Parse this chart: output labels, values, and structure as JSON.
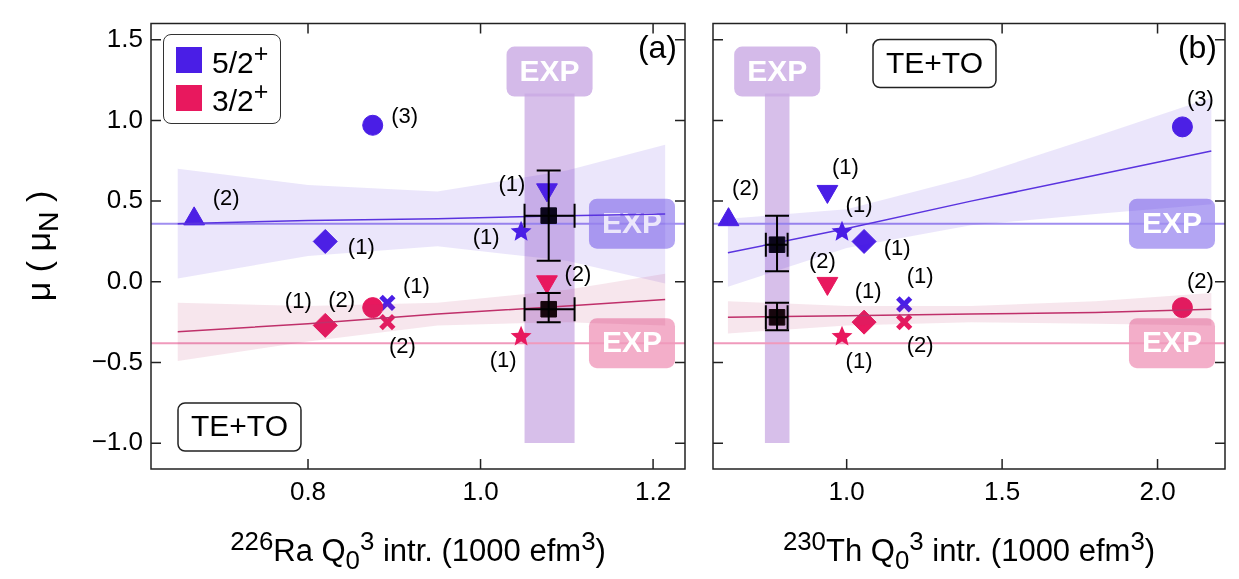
{
  "chart_data": [
    {
      "type": "scatter",
      "xlabel": "$^{226}$Ra Q$_{0}$$^{3}$ intr. (1000 efm$^{3}$)",
      "ylabel": "μ ( μ$_{N}$ )",
      "xlim": [
        0.618,
        1.237
      ],
      "xticks": [
        {
          "value": 0.8,
          "label": "0.8"
        },
        {
          "value": 1,
          "label": "1.0"
        },
        {
          "value": 1.2,
          "label": "1.2"
        }
      ],
      "ylim": [
        -1.16,
        1.6
      ],
      "yticks": [
        {
          "value": -1,
          "label": "−1.0"
        },
        {
          "value": -0.5,
          "label": "−0.5"
        },
        {
          "value": 0,
          "label": "0.0"
        },
        {
          "value": 0.5,
          "label": "0.5"
        },
        {
          "value": 1,
          "label": "1.0"
        },
        {
          "value": 1.5,
          "label": "1.5"
        }
      ],
      "grid": false,
      "legend": "top left",
      "bands": [
        {
          "axis": "x",
          "from": 1.051,
          "to": 1.109,
          "label": "EXP",
          "color": "#c9a9e3"
        }
      ],
      "ref_lines": [
        {
          "axis": "y",
          "value": 0.36,
          "label": "EXP",
          "color": "#a08ef0"
        },
        {
          "axis": "y",
          "value": -0.38,
          "label": "EXP",
          "color": "#f09abc"
        }
      ],
      "series": [
        {
          "name": "5/2$^{+}$",
          "type": "scatter",
          "marker": "circle",
          "color": "#4a1ee6",
          "x": [
            0.875
          ],
          "values": [
            0.97
          ]
        },
        {
          "type": "scatter",
          "marker": "triangle",
          "color": "#4a1ee6",
          "x": [
            0.668
          ],
          "values": [
            0.39
          ]
        },
        {
          "type": "scatter",
          "marker": "diamond",
          "color": "#4a1ee6",
          "x": [
            0.82
          ],
          "values": [
            0.25
          ]
        },
        {
          "type": "scatter",
          "marker": "cross",
          "color": "#4a1ee6",
          "x": [
            0.892
          ],
          "values": [
            -0.13
          ]
        },
        {
          "type": "scatter",
          "marker": "triangle_down",
          "color": "#4a1ee6",
          "x": [
            1.077
          ],
          "values": [
            0.57
          ]
        },
        {
          "type": "scatter",
          "marker": "star",
          "color": "#4a1ee6",
          "x": [
            1.047
          ],
          "values": [
            0.31
          ]
        },
        {
          "name": "3/2$^{+}$",
          "type": "scatter",
          "marker": "circle",
          "color": "#e8185e",
          "x": [
            0.875
          ],
          "values": [
            -0.16
          ]
        },
        {
          "type": "scatter",
          "marker": "diamond",
          "color": "#e8185e",
          "x": [
            0.82
          ],
          "values": [
            -0.27
          ]
        },
        {
          "type": "scatter",
          "marker": "cross",
          "color": "#e8185e",
          "x": [
            0.892
          ],
          "values": [
            -0.25
          ]
        },
        {
          "type": "scatter",
          "marker": "triangle_down",
          "color": "#e8185e",
          "x": [
            1.077
          ],
          "values": [
            0.0
          ]
        },
        {
          "type": "scatter",
          "marker": "star",
          "color": "#e8185e",
          "x": [
            1.047
          ],
          "values": [
            -0.34
          ]
        },
        {
          "type": "line",
          "marker": "none",
          "color": "#5a34e0",
          "x": [
            0.649,
            0.8,
            0.95,
            1.1,
            1.214
          ],
          "values": [
            0.36,
            0.38,
            0.39,
            0.41,
            0.42
          ],
          "lower": [
            0.02,
            0.16,
            0.22,
            0.13,
            -0.01
          ],
          "upper": [
            0.7,
            0.6,
            0.56,
            0.69,
            0.85
          ]
        },
        {
          "type": "line",
          "marker": "none",
          "color": "#c0306a",
          "x": [
            0.649,
            0.8,
            0.95,
            1.1,
            1.214
          ],
          "values": [
            -0.31,
            -0.26,
            -0.2,
            -0.15,
            -0.11
          ],
          "lower": [
            -0.49,
            -0.37,
            -0.27,
            -0.25,
            -0.27
          ],
          "upper": [
            -0.13,
            -0.15,
            -0.13,
            -0.05,
            0.05
          ]
        },
        {
          "type": "scatter",
          "marker": "square",
          "color": "#000000",
          "x": [
            1.079,
            1.079
          ],
          "values": [
            0.41,
            -0.17
          ],
          "errors": [
            [
              0.13,
              0.69
            ],
            [
              -0.25,
              -0.07
            ]
          ],
          "xerrors": [
            [
              1.051,
              1.109
            ],
            [
              1.051,
              1.109
            ]
          ]
        }
      ],
      "annotations": [
        "(a)",
        "TE+TO",
        "(3)",
        "(2)",
        "(1)",
        "(1)",
        "(1)",
        "(1)",
        "(2)",
        "(1)",
        "(2)",
        "(2)",
        "(1)"
      ]
    },
    {
      "type": "scatter",
      "xlabel": "$^{230}$Th Q$_{0}$$^{3}$ intr. (1000 efm$^{3}$)",
      "xlim": [
        0.57,
        2.217
      ],
      "xticks": [
        {
          "value": 1,
          "label": "1.0"
        },
        1.5,
        {
          "value": 2,
          "label": "2.0"
        }
      ],
      "ylim": [
        -1.16,
        1.6
      ],
      "yticks": [
        -1,
        -0.5,
        0,
        0.5,
        1,
        1.5
      ],
      "tick_labels": "x",
      "grid": false,
      "bands": [
        {
          "axis": "x",
          "from": 0.737,
          "to": 0.816,
          "label": "EXP",
          "color": "#c9a9e3"
        }
      ],
      "ref_lines": [
        {
          "axis": "y",
          "value": 0.36,
          "label": "EXP",
          "color": "#a08ef0"
        },
        {
          "axis": "y",
          "value": -0.38,
          "label": "EXP",
          "color": "#f09abc"
        }
      ],
      "series": [
        {
          "type": "scatter",
          "marker": "triangle",
          "color": "#4a1ee6",
          "x": [
            0.62
          ],
          "values": [
            0.385
          ]
        },
        {
          "type": "scatter",
          "marker": "triangle_down",
          "color": "#4a1ee6",
          "x": [
            0.938
          ],
          "values": [
            0.56
          ]
        },
        {
          "type": "scatter",
          "marker": "star",
          "color": "#4a1ee6",
          "x": [
            0.985
          ],
          "values": [
            0.31
          ]
        },
        {
          "type": "scatter",
          "marker": "diamond",
          "color": "#4a1ee6",
          "x": [
            1.056
          ],
          "values": [
            0.25
          ]
        },
        {
          "type": "scatter",
          "marker": "cross",
          "color": "#4a1ee6",
          "x": [
            1.185
          ],
          "values": [
            -0.14
          ]
        },
        {
          "type": "scatter",
          "marker": "circle",
          "color": "#4a1ee6",
          "x": [
            2.08
          ],
          "values": [
            0.96
          ]
        },
        {
          "type": "scatter",
          "marker": "triangle_down",
          "color": "#e8185e",
          "x": [
            0.938
          ],
          "values": [
            -0.01
          ]
        },
        {
          "type": "scatter",
          "marker": "diamond",
          "color": "#e8185e",
          "x": [
            1.056
          ],
          "values": [
            -0.25
          ]
        },
        {
          "type": "scatter",
          "marker": "star",
          "color": "#e8185e",
          "x": [
            0.985
          ],
          "values": [
            -0.34
          ]
        },
        {
          "type": "scatter",
          "marker": "cross",
          "color": "#e8185e",
          "x": [
            1.185
          ],
          "values": [
            -0.25
          ]
        },
        {
          "type": "scatter",
          "marker": "circle",
          "color": "#e8185e",
          "x": [
            2.08
          ],
          "values": [
            -0.16
          ]
        },
        {
          "type": "line",
          "marker": "none",
          "color": "#5a34e0",
          "x": [
            0.618,
            1.0,
            1.4,
            1.8,
            2.173
          ],
          "values": [
            0.18,
            0.33,
            0.5,
            0.66,
            0.81
          ],
          "lower": [
            -0.03,
            0.21,
            0.35,
            0.42,
            0.48
          ],
          "upper": [
            0.39,
            0.45,
            0.65,
            0.9,
            1.14
          ]
        },
        {
          "type": "line",
          "marker": "none",
          "color": "#c0306a",
          "x": [
            0.618,
            1.0,
            1.4,
            1.8,
            2.173
          ],
          "values": [
            -0.22,
            -0.21,
            -0.2,
            -0.19,
            -0.17
          ],
          "lower": [
            -0.32,
            -0.27,
            -0.25,
            -0.26,
            -0.27
          ],
          "upper": [
            -0.12,
            -0.15,
            -0.15,
            -0.12,
            -0.07
          ]
        },
        {
          "type": "scatter",
          "marker": "square",
          "color": "#000000",
          "x": [
            0.776,
            0.776
          ],
          "values": [
            0.23,
            -0.22
          ],
          "errors": [
            [
              0.065,
              0.41
            ],
            [
              -0.3,
              -0.13
            ]
          ],
          "xerrors": [
            [
              0.74,
              0.81
            ],
            [
              0.74,
              0.81
            ]
          ]
        }
      ],
      "annotations": [
        "(b)",
        "TE+TO",
        "(2)",
        "(1)",
        "(1)",
        "(1)",
        "(1)",
        "(3)",
        "(2)",
        "(1)",
        "(1)",
        "(2)",
        "(2)"
      ]
    }
  ]
}
